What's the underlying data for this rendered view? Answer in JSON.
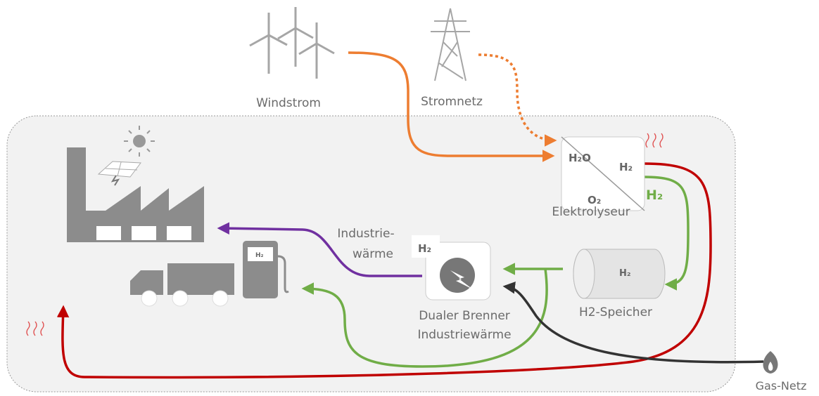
{
  "nodes": {
    "windstrom": {
      "label": "Windstrom"
    },
    "stromnetz": {
      "label": "Stromnetz"
    },
    "elektrolyseur": {
      "label": "Elektrolyseur",
      "input": "H₂O",
      "output": "H₂",
      "byproduct": "O₂"
    },
    "speicher": {
      "label": "H2-Speicher",
      "badge": "H₂"
    },
    "brenner": {
      "label": [
        "Dualer Brenner",
        "Industriewärme"
      ],
      "badge": "H₂"
    },
    "tankstelle": {
      "badge": "H₂"
    },
    "gasnetz": {
      "label": "Gas-Netz"
    }
  },
  "flows": {
    "wasserstoff": {
      "label": "H₂"
    },
    "waerme": {
      "label": [
        "Industrie-",
        "wärme"
      ]
    }
  }
}
